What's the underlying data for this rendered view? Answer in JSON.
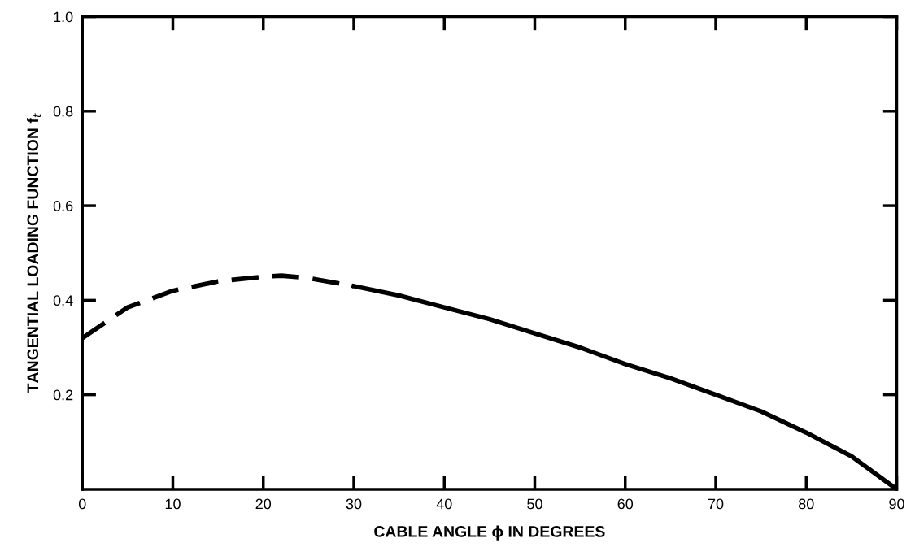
{
  "chart_data": {
    "type": "line",
    "xlabel": "CABLE ANGLE ϕ IN DEGREES",
    "ylabel": "TANGENTIAL LOADING FUNCTION f$_{t}$",
    "xlim": [
      0,
      90
    ],
    "ylim": [
      0,
      1.0
    ],
    "xticks": [
      0,
      10,
      20,
      30,
      40,
      50,
      60,
      70,
      80,
      90
    ],
    "yticks": [
      0.2,
      0.4,
      0.6,
      0.8,
      {
        "value": 1.0,
        "label": "1.0"
      }
    ],
    "grid": false,
    "marker": "none",
    "series": [
      {
        "color": "#000000",
        "line_style": "dashed",
        "x": [
          0,
          5,
          10,
          15,
          20,
          22,
          25,
          30
        ],
        "values": [
          0.32,
          0.385,
          0.42,
          0.44,
          0.45,
          0.452,
          0.447,
          0.43
        ]
      },
      {
        "color": "#000000",
        "line_style": "solid",
        "x": [
          30,
          35,
          40,
          45,
          50,
          55,
          60,
          65,
          70,
          75,
          80,
          85,
          90
        ],
        "values": [
          0.43,
          0.41,
          0.385,
          0.36,
          0.33,
          0.3,
          0.265,
          0.235,
          0.2,
          0.165,
          0.12,
          0.07,
          0.0
        ]
      }
    ]
  }
}
